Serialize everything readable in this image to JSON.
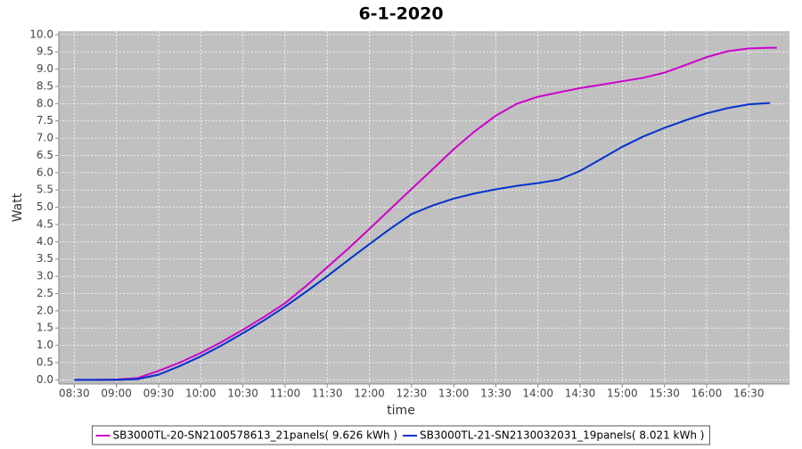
{
  "chart_data": {
    "type": "line",
    "title": "6-1-2020",
    "x_label": "time",
    "y_label": "Watt",
    "x": [
      "08:30",
      "08:45",
      "09:00",
      "09:15",
      "09:30",
      "09:45",
      "10:00",
      "10:15",
      "10:30",
      "10:45",
      "11:00",
      "11:15",
      "11:30",
      "11:45",
      "12:00",
      "12:15",
      "12:30",
      "12:45",
      "13:00",
      "13:15",
      "13:30",
      "13:45",
      "14:00",
      "14:15",
      "14:30",
      "14:45",
      "15:00",
      "15:15",
      "15:30",
      "15:45",
      "16:00",
      "16:15",
      "16:30",
      "16:45",
      "16:50"
    ],
    "series": [
      {
        "name": "SB3000TL-20-SN2100578613_21panels( 9.626 kWh )",
        "color": "#cc00cc",
        "values": [
          0,
          0,
          0.01,
          0.05,
          0.26,
          0.5,
          0.78,
          1.1,
          1.45,
          1.82,
          2.22,
          2.72,
          3.26,
          3.8,
          4.37,
          4.95,
          5.53,
          6.1,
          6.68,
          7.2,
          7.65,
          8.0,
          8.2,
          8.33,
          8.45,
          8.55,
          8.65,
          8.75,
          8.9,
          9.12,
          9.35,
          9.52,
          9.6,
          9.62,
          9.62
        ]
      },
      {
        "name": "SB3000TL-21-SN2130032031_19panels( 8.021 kWh )",
        "color": "#0033cc",
        "values": [
          0,
          0,
          0,
          0.02,
          0.15,
          0.4,
          0.68,
          1.0,
          1.35,
          1.72,
          2.12,
          2.55,
          3.0,
          3.47,
          3.93,
          4.38,
          4.8,
          5.05,
          5.25,
          5.4,
          5.52,
          5.62,
          5.7,
          5.8,
          6.05,
          6.4,
          6.75,
          7.05,
          7.3,
          7.52,
          7.72,
          7.87,
          7.98,
          8.02,
          null
        ]
      }
    ],
    "xlim": [
      "08:19",
      "16:59"
    ],
    "xticks": [
      "08:30",
      "09:00",
      "09:30",
      "10:00",
      "10:30",
      "11:00",
      "11:30",
      "12:00",
      "12:30",
      "13:00",
      "13:30",
      "14:00",
      "14:30",
      "15:00",
      "15:30",
      "16:00",
      "16:30"
    ],
    "ylim": [
      -0.12,
      10.1
    ],
    "yticks": [
      {
        "value": 0,
        "label": "0.0"
      },
      0.5,
      {
        "value": 1,
        "label": "1.0"
      },
      1.5,
      {
        "value": 2,
        "label": "2.0"
      },
      2.5,
      {
        "value": 3,
        "label": "3.0"
      },
      3.5,
      {
        "value": 4,
        "label": "4.0"
      },
      4.5,
      {
        "value": 5,
        "label": "5.0"
      },
      5.5,
      {
        "value": 6,
        "label": "6.0"
      },
      6.5,
      {
        "value": 7,
        "label": "7.0"
      },
      7.5,
      {
        "value": 8,
        "label": "8.0"
      },
      8.5,
      {
        "value": 9,
        "label": "9.0"
      },
      9.5,
      {
        "value": 10,
        "label": "10.0"
      }
    ],
    "grid": true
  }
}
